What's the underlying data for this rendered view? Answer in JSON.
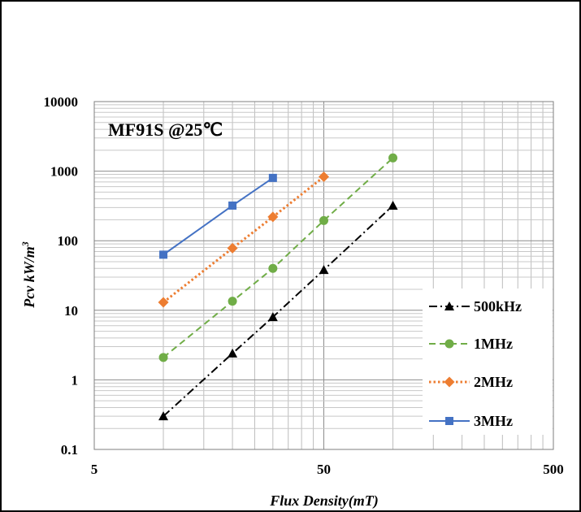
{
  "chart_data": {
    "type": "line",
    "annotation": "MF91S @25℃",
    "xlabel": "Flux Density(mT)",
    "ylabel_main": "Pcv kW/m",
    "ylabel_sup": "3",
    "x_scale": "log",
    "y_scale": "log",
    "xlim": [
      5,
      500
    ],
    "ylim": [
      0.1,
      10000
    ],
    "x_ticks": [
      "5",
      "50",
      "500"
    ],
    "y_ticks": [
      "0.1",
      "1",
      "10",
      "100",
      "1000",
      "10000"
    ],
    "grid": true,
    "legend_position": "right",
    "series": [
      {
        "name": "500kHz",
        "color": "#000000",
        "dash": "dashdot",
        "marker": "triangle",
        "points": [
          [
            10,
            0.3
          ],
          [
            20,
            2.4
          ],
          [
            30,
            8
          ],
          [
            50,
            38
          ],
          [
            100,
            320
          ]
        ]
      },
      {
        "name": "1MHz",
        "color": "#70AD47",
        "dash": "dashed",
        "marker": "circle",
        "points": [
          [
            10,
            2.1
          ],
          [
            20,
            13.5
          ],
          [
            30,
            40
          ],
          [
            50,
            195
          ],
          [
            100,
            1550
          ]
        ]
      },
      {
        "name": "2MHz",
        "color": "#ED7D31",
        "dash": "dotted",
        "marker": "diamond",
        "points": [
          [
            10,
            13
          ],
          [
            20,
            78
          ],
          [
            30,
            220
          ],
          [
            50,
            830
          ]
        ]
      },
      {
        "name": "3MHz",
        "color": "#4472C4",
        "dash": "solid",
        "marker": "square",
        "points": [
          [
            10,
            63
          ],
          [
            20,
            320
          ],
          [
            30,
            800
          ]
        ]
      }
    ]
  }
}
